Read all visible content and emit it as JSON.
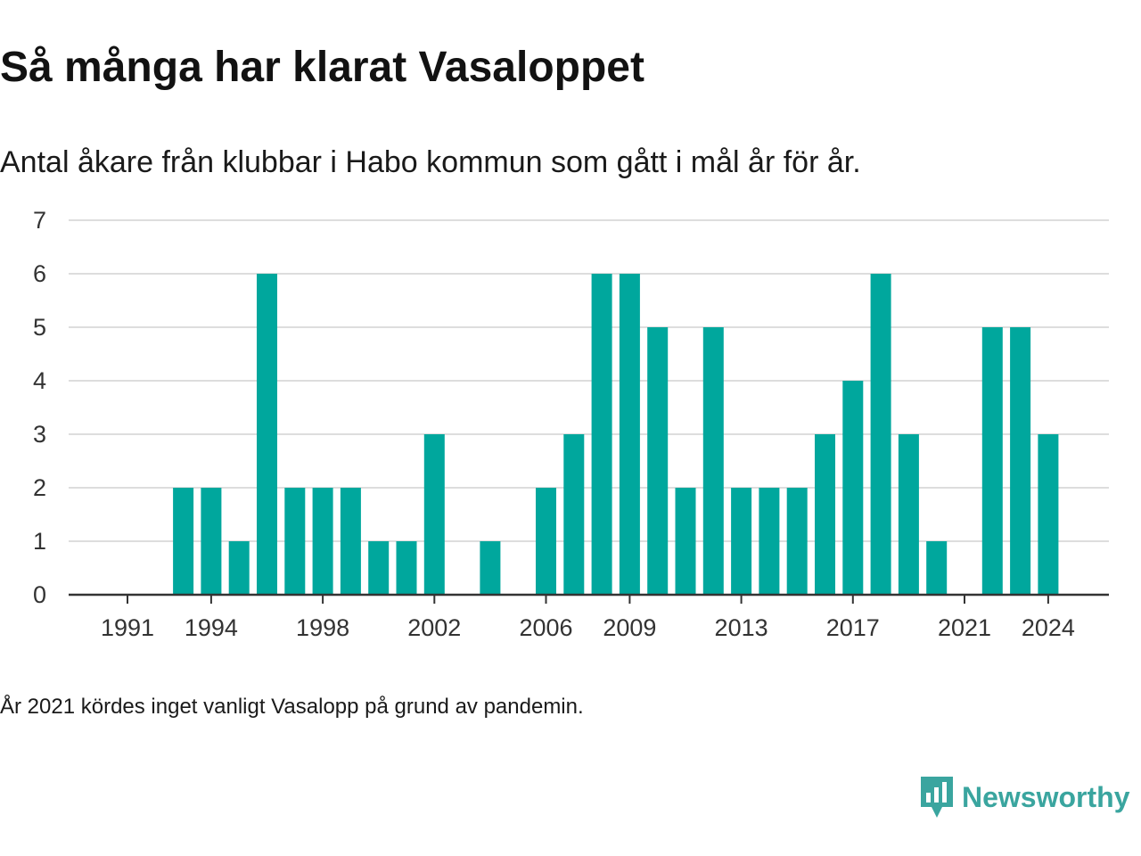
{
  "title": "Så många har klarat Vasaloppet",
  "subtitle": "Antal åkare från klubbar i Habo kommun som gått i mål år för år.",
  "footnote": "År 2021 kördes inget vanligt Vasalopp på grund av pandemin.",
  "brand": {
    "name": "Newsworthy",
    "color": "#3aa59f",
    "icon": "chart-speech-bubble-icon"
  },
  "chart_data": {
    "type": "bar",
    "x": [
      1991,
      1992,
      1993,
      1994,
      1995,
      1996,
      1997,
      1998,
      1999,
      2000,
      2001,
      2002,
      2003,
      2004,
      2005,
      2006,
      2007,
      2008,
      2009,
      2010,
      2011,
      2012,
      2013,
      2014,
      2015,
      2016,
      2017,
      2018,
      2019,
      2020,
      2021,
      2022,
      2023,
      2024
    ],
    "values": [
      0,
      0,
      2,
      2,
      1,
      6,
      2,
      2,
      2,
      1,
      1,
      3,
      0,
      1,
      0,
      2,
      3,
      6,
      6,
      5,
      2,
      5,
      2,
      2,
      2,
      3,
      4,
      6,
      3,
      1,
      0,
      5,
      5,
      3
    ],
    "x_tick_labels": [
      "1991",
      "1994",
      "1998",
      "2002",
      "2006",
      "2009",
      "2013",
      "2017",
      "2021",
      "2024"
    ],
    "y_ticks": [
      0,
      1,
      2,
      3,
      4,
      5,
      6,
      7
    ],
    "ylim": [
      0,
      7
    ],
    "grid": true,
    "bar_color": "#00a79d"
  }
}
